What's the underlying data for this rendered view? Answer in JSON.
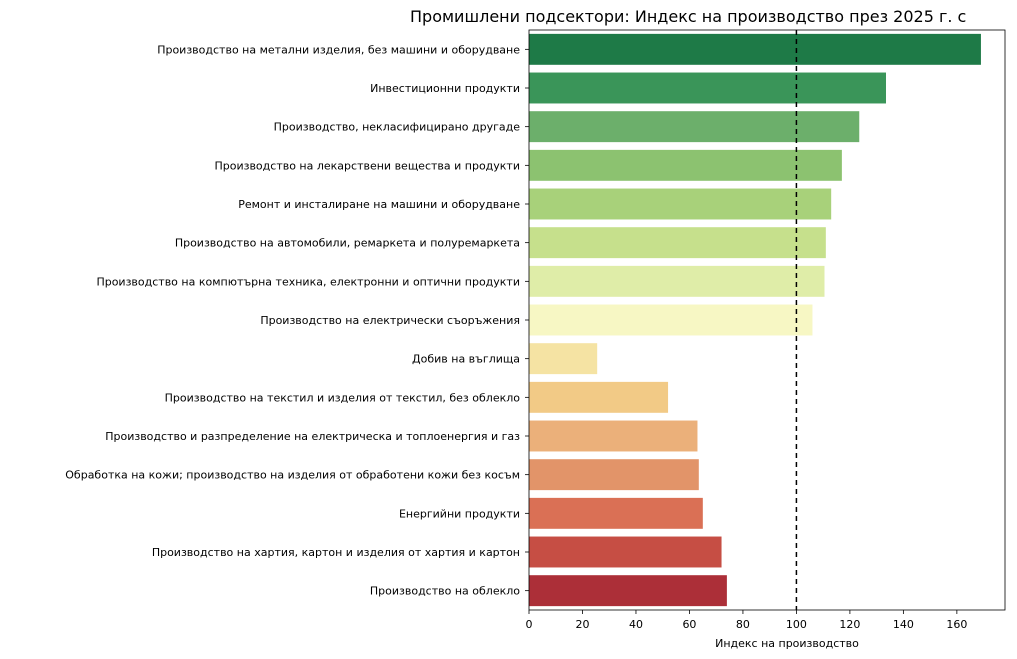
{
  "chart_data": {
    "type": "bar",
    "orientation": "horizontal",
    "title": "Промишлени подсектори: Индекс на производство през 2025 г. с",
    "xlabel": "Индекс на производство",
    "ylabel": "",
    "xlim": [
      0,
      178
    ],
    "xticks": [
      0,
      20,
      40,
      60,
      80,
      100,
      120,
      140,
      160
    ],
    "grid": false,
    "reference_line": {
      "x": 100,
      "style": "dashed"
    },
    "categories": [
      "Производство на метални изделия, без машини и оборудване",
      "Инвестиционни продукти",
      "Производство, некласифицирано другаде",
      "Производство на лекарствени вещества и продукти",
      "Ремонт и инсталиране на машини и оборудване",
      "Производство на автомобили, ремаркета и полуремаркета",
      "Производство на компютърна  техника, електронни и оптични продукти",
      "Производство на електрически съоръжения",
      "Добив на въглища",
      "Производство на текстил и изделия от текстил, без  облекло",
      "Производство и разпределение на електрическа и топлоенергия и газ",
      "Обработка на кожи; производство на изделия от обработени кожи без косъм",
      "Енергийни продукти",
      "Производство на хартия, картон и изделия от хартия и картон",
      "Производство на облекло"
    ],
    "values": [
      169,
      133.5,
      123.5,
      117,
      113,
      111,
      110.5,
      106,
      25.5,
      52,
      63,
      63.5,
      65,
      72,
      74
    ],
    "colors": [
      "#1e7a47",
      "#3a9559",
      "#6caf6b",
      "#8cc270",
      "#a8d17a",
      "#c6e08c",
      "#dfeda8",
      "#f7f7c4",
      "#f5e3a3",
      "#f2ca86",
      "#ebb07a",
      "#e29469",
      "#da7055",
      "#c64e44",
      "#ac2f38"
    ]
  }
}
